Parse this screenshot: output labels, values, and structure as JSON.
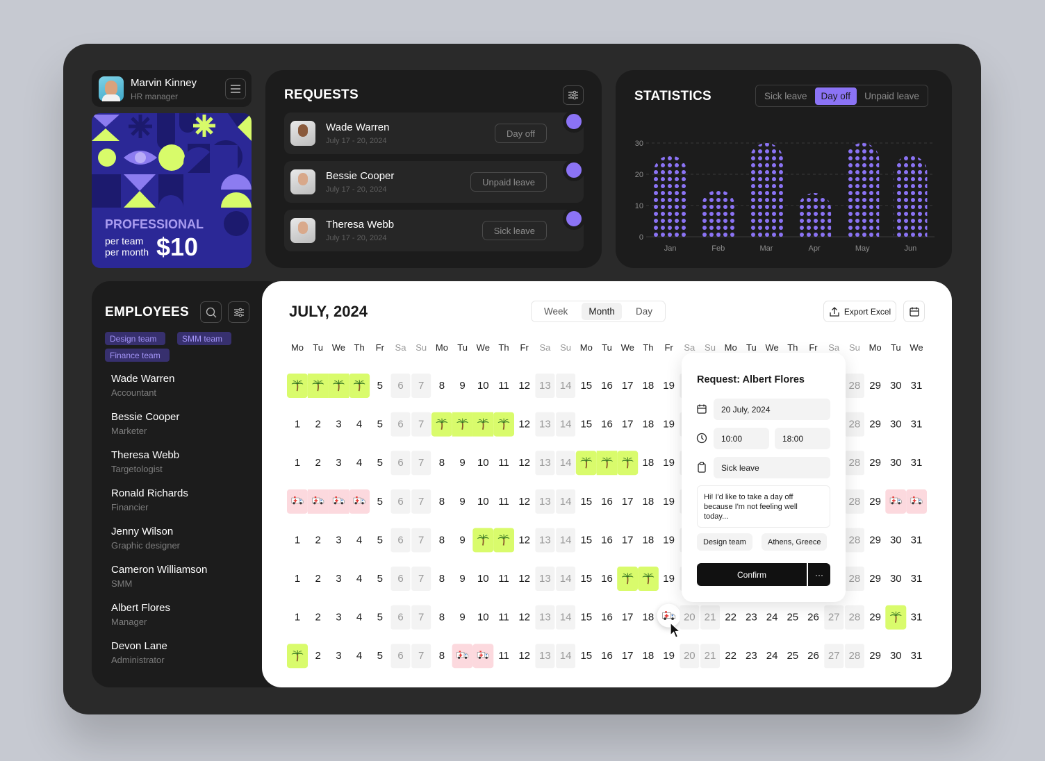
{
  "profile": {
    "name": "Marvin Kinney",
    "role": "HR manager"
  },
  "plan": {
    "title": "PROFESSIONAL",
    "line1": "per team",
    "line2": "per month",
    "price": "$10"
  },
  "requests": {
    "title": "REQUESTS",
    "items": [
      {
        "name": "Wade Warren",
        "date": "July 17 - 20, 2024",
        "type": "Day off"
      },
      {
        "name": "Bessie Cooper",
        "date": "July 17 - 20, 2024",
        "type": "Unpaid leave"
      },
      {
        "name": "Theresa Webb",
        "date": "July 17 - 20, 2024",
        "type": "Sick leave"
      }
    ]
  },
  "statistics": {
    "title": "STATISTICS",
    "tabs": [
      "Sick leave",
      "Day off",
      "Unpaid leave"
    ],
    "active_tab": 1,
    "chart": {
      "type": "bar",
      "categories": [
        "Jan",
        "Feb",
        "Mar",
        "Apr",
        "May",
        "Jun"
      ],
      "values": [
        26,
        15,
        30,
        14,
        30,
        26
      ],
      "ylim": [
        0,
        30
      ],
      "yticks": [
        0,
        10,
        20,
        30
      ],
      "color": "#8b73f5",
      "grid": true
    }
  },
  "employees": {
    "title": "EMPLOYEES",
    "filters": [
      "Design team",
      "SMM team",
      "Finance team"
    ],
    "items": [
      {
        "name": "Wade Warren",
        "role": "Accountant"
      },
      {
        "name": "Bessie Cooper",
        "role": "Marketer"
      },
      {
        "name": "Theresa Webb",
        "role": "Targetologist"
      },
      {
        "name": "Ronald Richards",
        "role": "Financier"
      },
      {
        "name": "Jenny Wilson",
        "role": "Graphic designer"
      },
      {
        "name": "Cameron Williamson",
        "role": "SMM"
      },
      {
        "name": "Albert Flores",
        "role": "Manager"
      },
      {
        "name": "Devon Lane",
        "role": "Administrator"
      }
    ]
  },
  "calendar": {
    "title": "JULY, 2024",
    "views": [
      "Week",
      "Month",
      "Day"
    ],
    "active_view": 1,
    "export": "Export Excel",
    "weekdays": [
      "Mo",
      "Tu",
      "We",
      "Th",
      "Fr",
      "Sa",
      "Su",
      "Mo",
      "Tu",
      "We",
      "Th",
      "Fr",
      "Sa",
      "Su",
      "Mo",
      "Tu",
      "We",
      "Th",
      "Fr",
      "Sa",
      "Su",
      "Mo",
      "Tu",
      "We",
      "Th",
      "Fr",
      "Sa",
      "Su",
      "Mo",
      "Tu",
      "We"
    ],
    "days": [
      1,
      2,
      3,
      4,
      5,
      6,
      7,
      8,
      9,
      10,
      11,
      12,
      13,
      14,
      15,
      16,
      17,
      18,
      19,
      20,
      21,
      22,
      23,
      24,
      25,
      26,
      27,
      28,
      29,
      30,
      31
    ],
    "rows": [
      {
        "day_off": [
          1,
          2,
          3,
          4
        ],
        "sick_leave": []
      },
      {
        "day_off": [
          8,
          9,
          10,
          11
        ],
        "sick_leave": []
      },
      {
        "day_off": [
          15,
          16,
          17
        ],
        "sick_leave": []
      },
      {
        "day_off": [],
        "sick_leave": [
          1,
          2,
          3,
          4,
          30,
          31
        ]
      },
      {
        "day_off": [
          10,
          11
        ],
        "sick_leave": []
      },
      {
        "day_off": [
          17,
          18
        ],
        "sick_leave": []
      },
      {
        "day_off": [
          30
        ],
        "sick_leave": [
          19
        ],
        "selected_day": 19
      },
      {
        "day_off": [
          1
        ],
        "sick_leave": [
          9,
          10
        ]
      }
    ]
  },
  "popup": {
    "title": "Request: Albert Flores",
    "date": "20 July, 2024",
    "start": "10:00",
    "end": "18:00",
    "type": "Sick leave",
    "message": "Hi! I'd like to take a day off because I'm not feeling well today...",
    "tags": [
      "Design team",
      "Athens, Greece"
    ],
    "confirm": "Confirm",
    "more": "···"
  }
}
